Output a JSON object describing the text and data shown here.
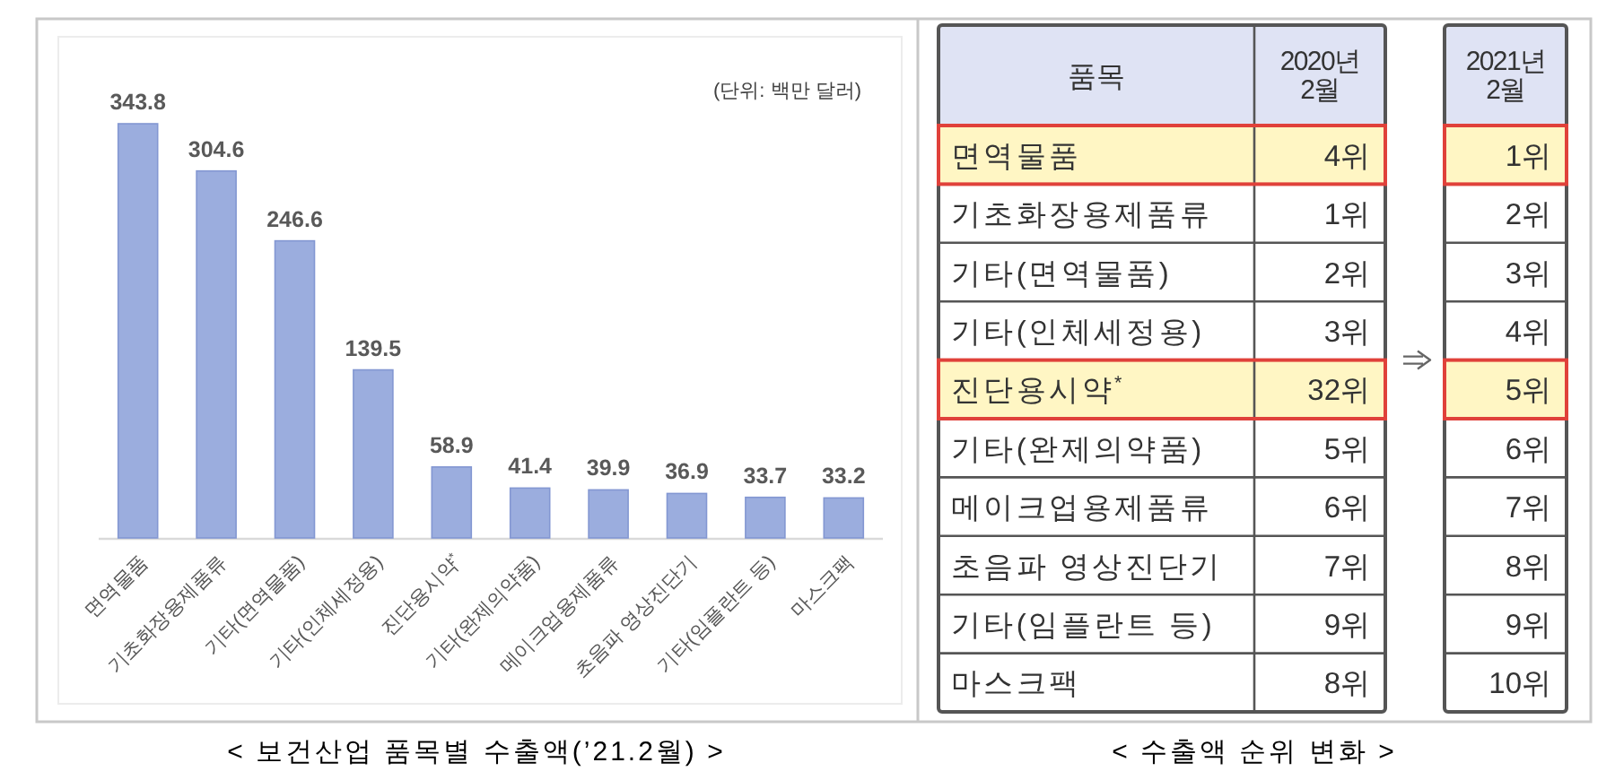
{
  "chart_data": [
    {
      "type": "bar",
      "title": "< 보건산업 품목별 수출액(’21.2월) >",
      "annotations": [
        "(단위: 백만 달러)"
      ],
      "categories": [
        "면역물품",
        "기초화장용제품류",
        "기타(면역물품)",
        "기타(인체세정용)",
        "진단용시약$^{*}$",
        "기타(완제의약품)",
        "메이크업용제품류",
        "초음파 영상진단기",
        "기타(임플란트 등)",
        "마스크팩"
      ],
      "values": [
        343.8,
        304.6,
        246.6,
        139.5,
        58.9,
        41.4,
        39.9,
        36.9,
        33.7,
        33.2
      ],
      "color": "#9badde",
      "data_labels": true
    },
    {
      "type": "heatmap",
      "title": "< 수출액 순위 변화 >",
      "ylabel": "품목",
      "categories": [
        "2020년 2월",
        "2021년 2월"
      ],
      "y_categories": [
        "면역물품",
        "기초화장용제품류",
        "기타(면역물품)",
        "기타(인체세정용)",
        "진단용시약$^{*}$",
        "기타(완제의약품)",
        "메이크업용제품류",
        "초음파 영상진단기",
        "기타(임플란트 등)",
        "마스크팩"
      ],
      "cells": [
        [
          4,
          1
        ],
        [
          1,
          2
        ],
        [
          2,
          3
        ],
        [
          3,
          4
        ],
        [
          32,
          5
        ],
        [
          5,
          6
        ],
        [
          6,
          7
        ],
        [
          7,
          8
        ],
        [
          9,
          9
        ],
        [
          8,
          10
        ]
      ],
      "cell_labels": [
        [
          "4위",
          "1위"
        ],
        [
          "1위",
          "2위"
        ],
        [
          "2위",
          "3위"
        ],
        [
          "3위",
          "4위"
        ],
        [
          "32위",
          "5위"
        ],
        [
          "5위",
          "6위"
        ],
        [
          "6위",
          "7위"
        ],
        [
          "7위",
          "8위"
        ],
        [
          "9위",
          "9위"
        ],
        [
          "8위",
          "10위"
        ]
      ],
      "colors": [
        "#fff6c4",
        null,
        null,
        null,
        "#fff6c4",
        null,
        null,
        null,
        null,
        null
      ]
    }
  ]
}
